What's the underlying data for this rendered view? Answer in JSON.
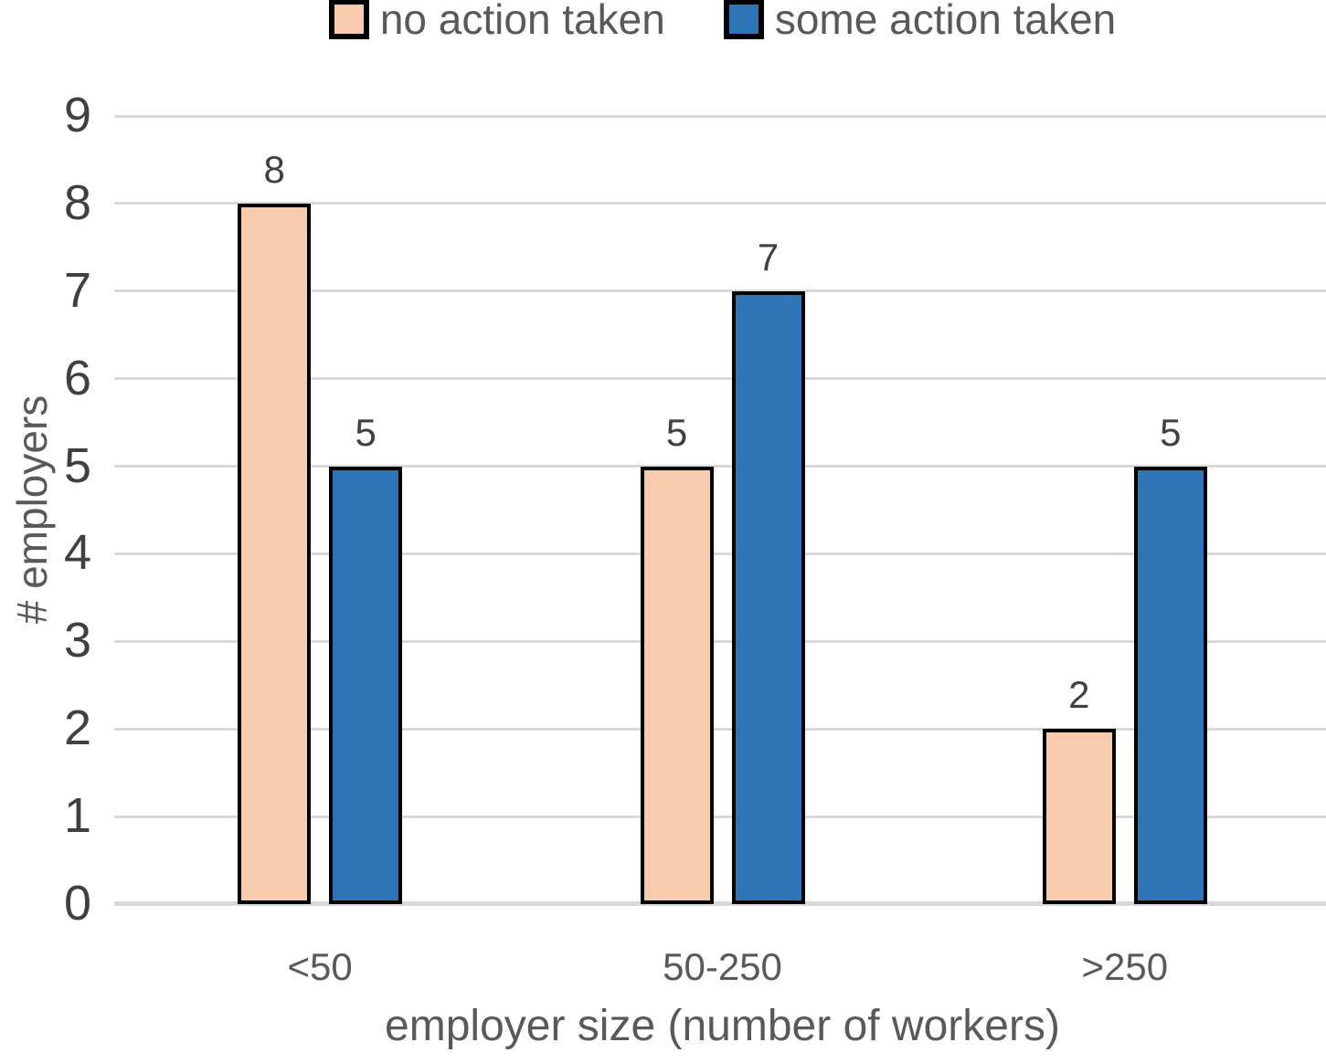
{
  "chart_data": {
    "type": "bar",
    "title": "",
    "categories": [
      "<50",
      "50-250",
      ">250"
    ],
    "series": [
      {
        "name": "no action taken",
        "color": "#F8CBAD",
        "values": [
          8,
          5,
          2
        ]
      },
      {
        "name": "some action taken",
        "color": "#2E75B6",
        "values": [
          5,
          7,
          5
        ]
      }
    ],
    "xlabel": "employer size (number of workers)",
    "ylabel": "# employers",
    "ylim": [
      0,
      9
    ],
    "ytick_step": 1,
    "yticks": [
      0,
      1,
      2,
      3,
      4,
      5,
      6,
      7,
      8,
      9
    ],
    "grid": true,
    "data_labels": true,
    "legend_position": "top"
  },
  "styles": {
    "bar_border_color": "#000000",
    "gridline_color": "#D9D9D9",
    "axis_line_color": "#D9D9D9",
    "tick_label_color": "#404040",
    "data_label_color": "#404040",
    "axis_title_color": "#595959",
    "legend_text_color": "#595959",
    "background": "#FFFFFF"
  }
}
